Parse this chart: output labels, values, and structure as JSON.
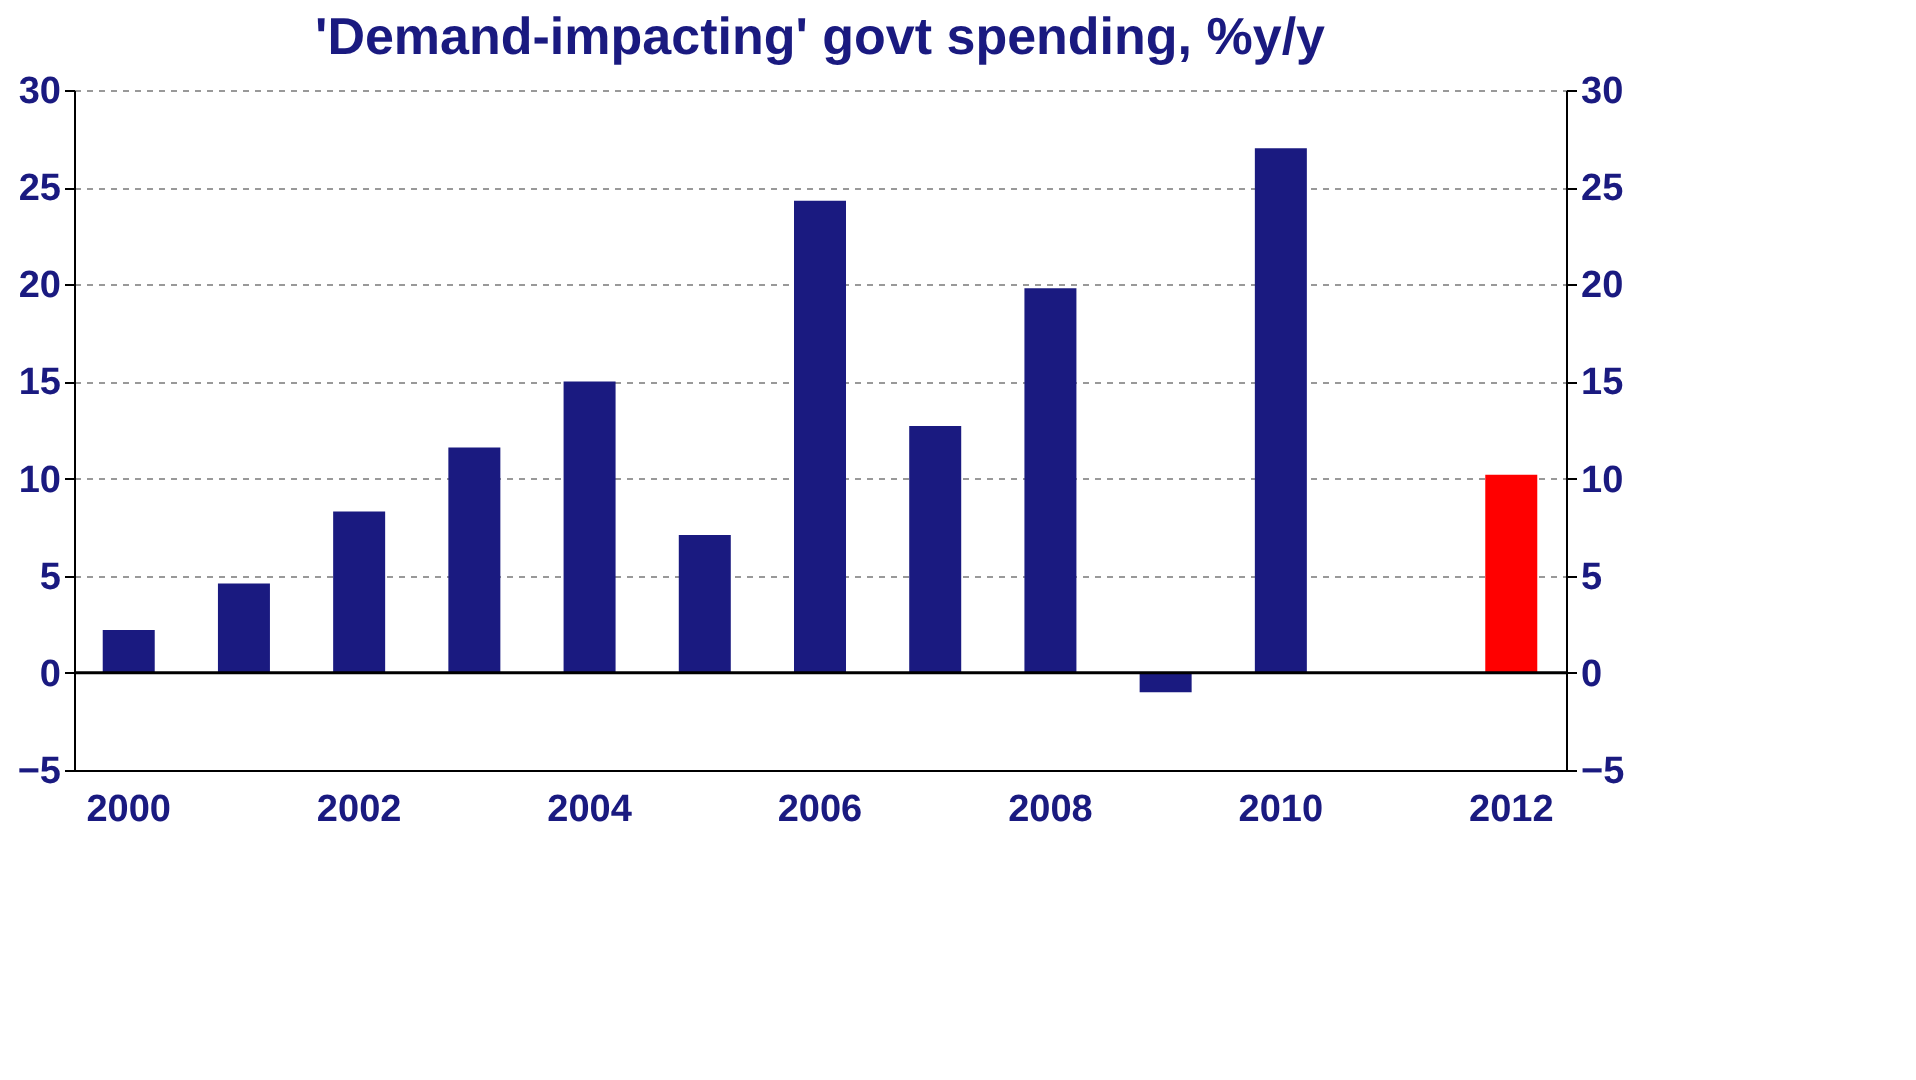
{
  "chart_data": {
    "type": "bar",
    "title": "'Demand-impacting' govt spending, %y/y",
    "categories": [
      "2000",
      null,
      "2002",
      null,
      "2004",
      null,
      "2006",
      null,
      "2008",
      null,
      "2010",
      null,
      "2012"
    ],
    "values": [
      2.2,
      4.6,
      8.3,
      11.6,
      15.0,
      7.1,
      24.3,
      12.7,
      19.8,
      -1.0,
      27.0,
      null,
      10.2
    ],
    "colors": [
      "#1a1a80",
      "#1a1a80",
      "#1a1a80",
      "#1a1a80",
      "#1a1a80",
      "#1a1a80",
      "#1a1a80",
      "#1a1a80",
      "#1a1a80",
      "#1a1a80",
      "#1a1a80",
      "#1a1a80",
      "#ff0000"
    ],
    "ylim": [
      -5,
      30
    ],
    "yticks": [
      -5,
      0,
      5,
      10,
      15,
      20,
      25,
      30
    ],
    "y2lim": [
      -5,
      30
    ],
    "y2ticks": [
      -5,
      0,
      5,
      10,
      15,
      20,
      25,
      30
    ],
    "grid": "y"
  }
}
